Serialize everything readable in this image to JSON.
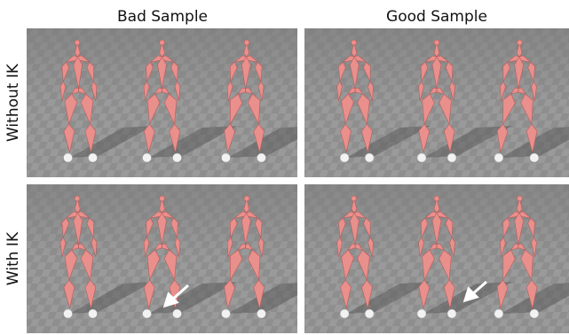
{
  "columns": [
    "Bad Sample",
    "Good Sample"
  ],
  "rows": [
    "Without IK",
    "With IK"
  ]
}
